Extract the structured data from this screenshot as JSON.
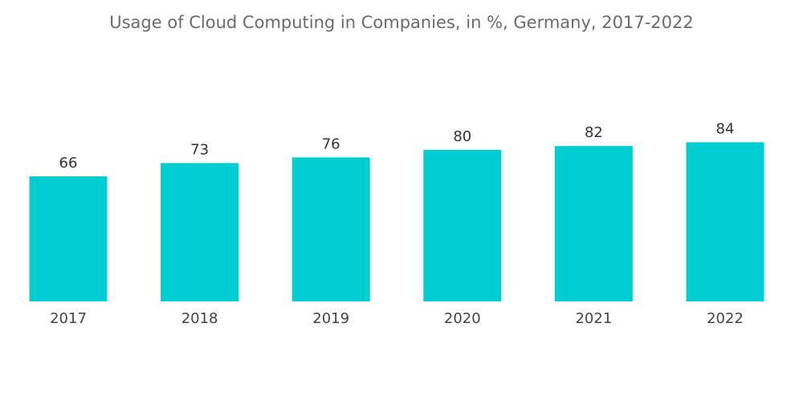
{
  "chart_data": {
    "type": "bar",
    "title": "Usage of Cloud Computing in Companies, in %, Germany, 2017-2022",
    "categories": [
      "2017",
      "2018",
      "2019",
      "2020",
      "2021",
      "2022"
    ],
    "values": [
      66,
      73,
      76,
      80,
      82,
      84
    ],
    "xlabel": "",
    "ylabel": "",
    "ylim": [
      0,
      100
    ],
    "grid": false,
    "data_labels": true,
    "colors": {
      "bar": "#00CED1"
    }
  }
}
